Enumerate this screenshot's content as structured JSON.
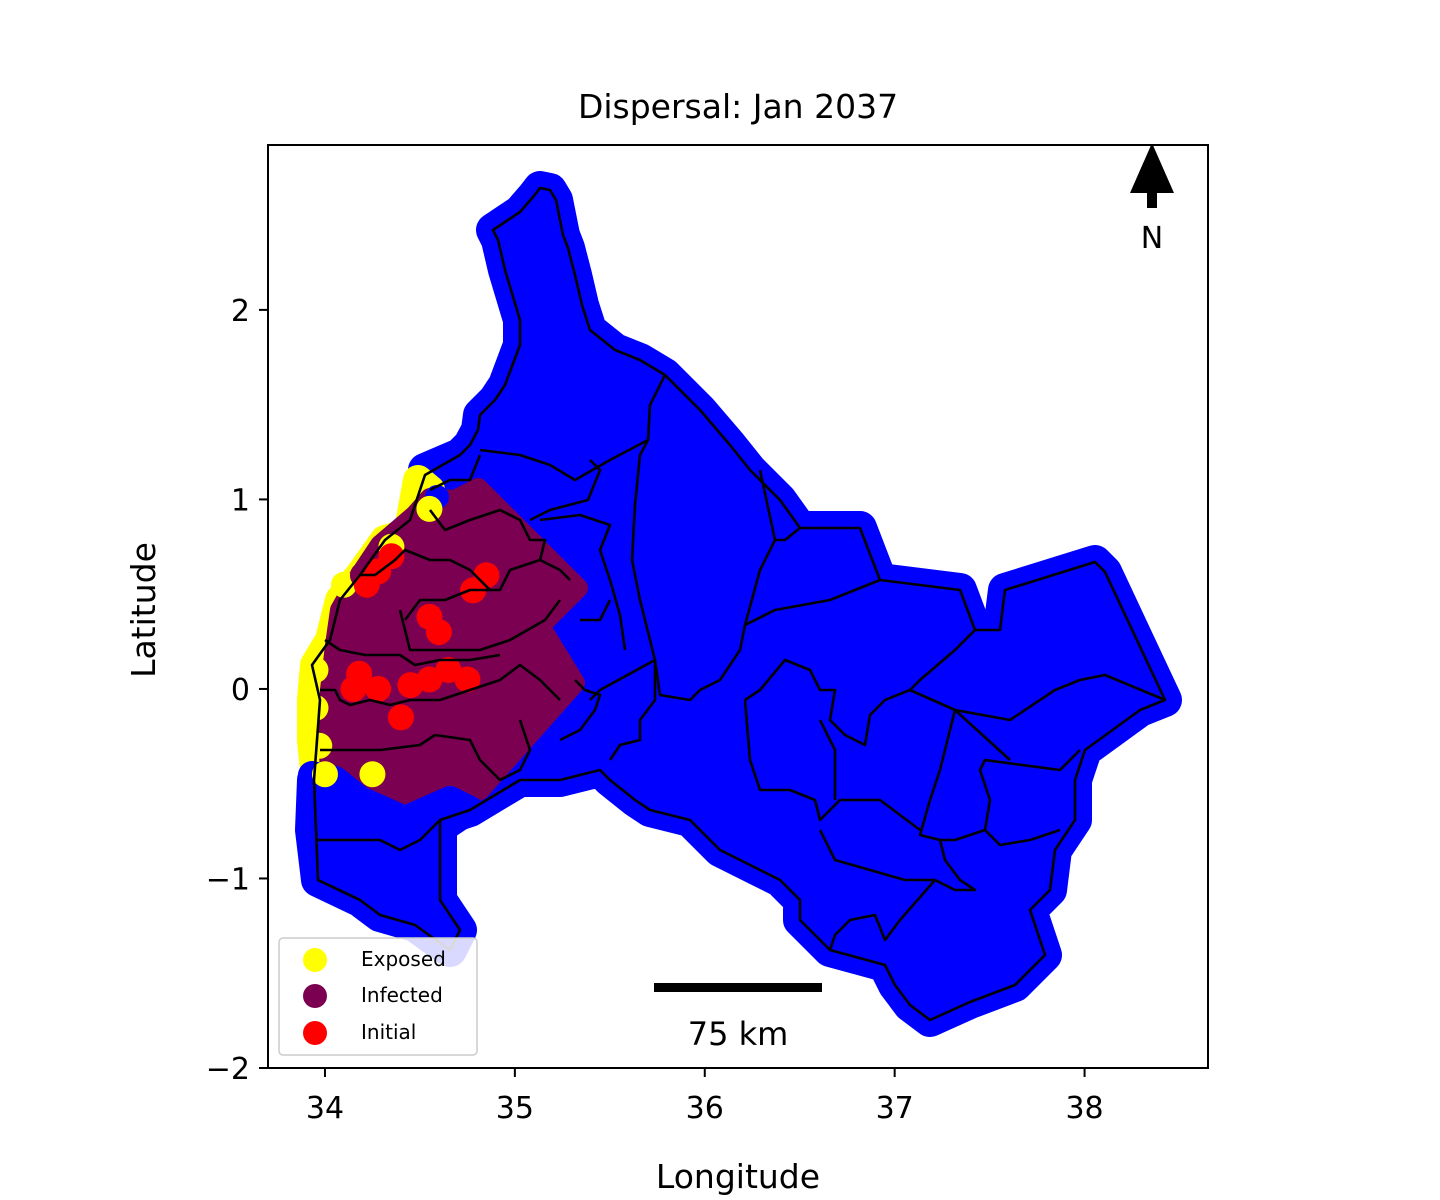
{
  "chart_data": {
    "type": "scatter",
    "title": "Dispersal: Jan 2037",
    "xlabel": "Longitude",
    "ylabel": "Latitude",
    "xlim": [
      33.7,
      38.65
    ],
    "ylim": [
      -2.0,
      2.87
    ],
    "xticks": [
      34,
      35,
      36,
      37,
      38
    ],
    "yticks": [
      -2,
      -1,
      0,
      1,
      2
    ],
    "xtick_labels": [
      "34",
      "35",
      "36",
      "37",
      "38"
    ],
    "ytick_labels": [
      "−2",
      "−1",
      "0",
      "1",
      "2"
    ],
    "grid": false,
    "legend_position": "lower-left",
    "north_arrow_label": "N",
    "scalebar_label": "75 km",
    "series": [
      {
        "name": "Exposed",
        "color": "#ffff00",
        "values": [
          [
            33.95,
            0.1
          ],
          [
            33.95,
            -0.1
          ],
          [
            33.97,
            -0.3
          ],
          [
            34.0,
            -0.45
          ],
          [
            34.25,
            -0.45
          ],
          [
            34.35,
            0.75
          ],
          [
            34.55,
            0.95
          ],
          [
            34.1,
            0.55
          ]
        ]
      },
      {
        "name": "Infected",
        "color": "#7b0051",
        "values": [
          [
            34.2,
            0.6
          ],
          [
            34.5,
            0.55
          ],
          [
            34.75,
            0.5
          ],
          [
            34.5,
            0.2
          ],
          [
            34.7,
            0.1
          ],
          [
            34.3,
            -0.1
          ],
          [
            34.6,
            -0.3
          ],
          [
            34.4,
            -0.5
          ],
          [
            34.9,
            0.3
          ],
          [
            35.1,
            0.0
          ],
          [
            34.85,
            -0.15
          ]
        ]
      },
      {
        "name": "Initial",
        "color": "#ff0000",
        "values": [
          [
            34.22,
            0.55
          ],
          [
            34.28,
            0.62
          ],
          [
            34.35,
            0.7
          ],
          [
            34.55,
            0.38
          ],
          [
            34.6,
            0.3
          ],
          [
            34.78,
            0.52
          ],
          [
            34.85,
            0.6
          ],
          [
            34.18,
            0.08
          ],
          [
            34.15,
            0.0
          ],
          [
            34.28,
            0.0
          ],
          [
            34.45,
            0.02
          ],
          [
            34.55,
            0.05
          ],
          [
            34.65,
            0.1
          ],
          [
            34.75,
            0.05
          ],
          [
            34.4,
            -0.15
          ]
        ]
      },
      {
        "name": "",
        "color": "#0000ff",
        "values": []
      }
    ]
  }
}
